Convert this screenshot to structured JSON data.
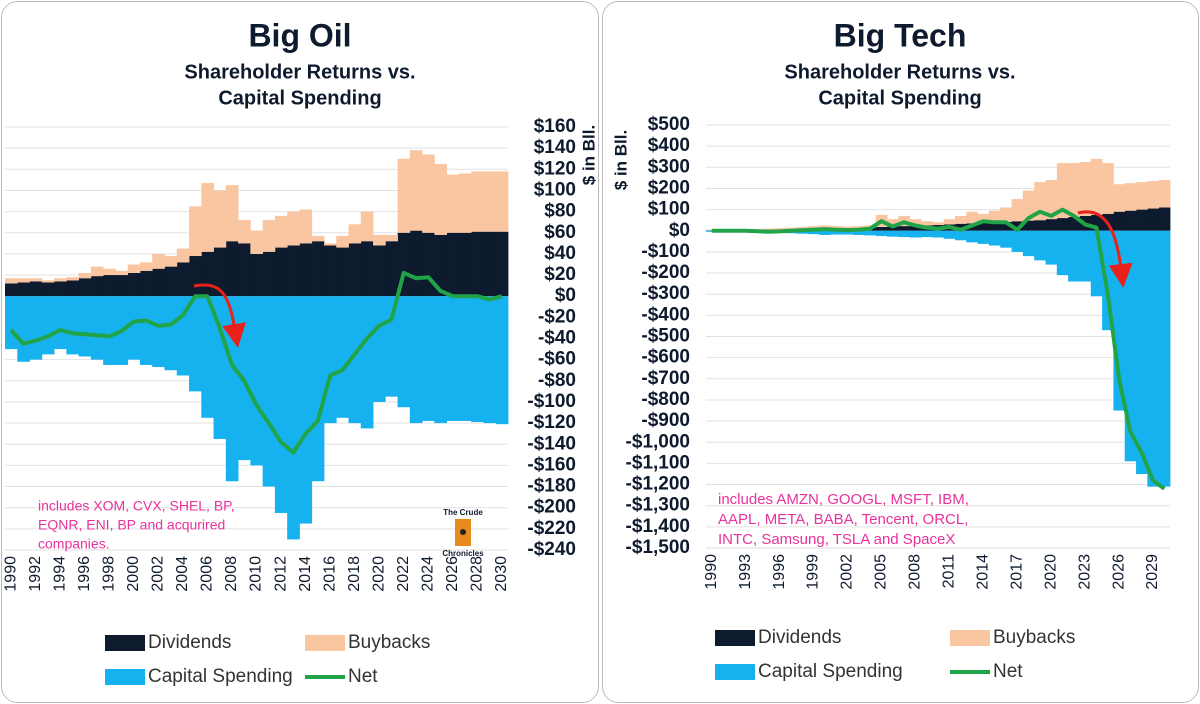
{
  "chart_data": [
    {
      "type": "bar",
      "title": "Big Oil",
      "subtitle": [
        "Shareholder Returns vs.",
        "Capital Spending"
      ],
      "y_label": "$ in Bll.",
      "annotation": [
        "includes XOM, CVX, SHEL, BP,",
        "EQNR, ENI, BP and acqurired",
        "companies."
      ],
      "logo": [
        "The Crude",
        "Chronicles"
      ],
      "axis_side": "right",
      "grid": true,
      "legend": "bottom",
      "categories": [
        "1990",
        null,
        "1992",
        null,
        "1994",
        null,
        "1996",
        null,
        "1998",
        null,
        "2000",
        null,
        "2002",
        null,
        "2004",
        null,
        "2006",
        null,
        "2008",
        null,
        "2010",
        null,
        "2012",
        null,
        "2014",
        null,
        "2016",
        null,
        "2018",
        null,
        "2020",
        null,
        "2022",
        null,
        "2024",
        null,
        "2026",
        null,
        "2028",
        null,
        "2030"
      ],
      "ylim": [
        -240,
        160
      ],
      "yticks": [
        {
          "value": 160,
          "label": "$160"
        },
        {
          "value": 140,
          "label": "$140"
        },
        {
          "value": 120,
          "label": "$120"
        },
        {
          "value": 100,
          "label": "$100"
        },
        {
          "value": 80,
          "label": "$80"
        },
        {
          "value": 60,
          "label": "$60"
        },
        {
          "value": 40,
          "label": "$40"
        },
        {
          "value": 20,
          "label": "$20"
        },
        {
          "value": 0,
          "label": "$0"
        },
        {
          "value": -20,
          "label": "-$20"
        },
        {
          "value": -40,
          "label": "-$40"
        },
        {
          "value": -60,
          "label": "-$60"
        },
        {
          "value": -80,
          "label": "-$80"
        },
        {
          "value": -100,
          "label": "-$100"
        },
        {
          "value": -120,
          "label": "-$120"
        },
        {
          "value": -140,
          "label": "-$140"
        },
        {
          "value": -160,
          "label": "-$160"
        },
        {
          "value": -180,
          "label": "-$180"
        },
        {
          "value": -200,
          "label": "-$200"
        },
        {
          "value": -220,
          "label": "-$220"
        },
        {
          "value": -240,
          "label": "-$240"
        }
      ],
      "series": [
        {
          "name": "Dividends",
          "type": "bar",
          "color": "#0e1a2d",
          "values": [
            12,
            13,
            14,
            13,
            14,
            15,
            17,
            19,
            20,
            20,
            22,
            24,
            26,
            28,
            32,
            38,
            42,
            46,
            52,
            50,
            40,
            42,
            46,
            48,
            50,
            52,
            48,
            46,
            50,
            52,
            48,
            52,
            60,
            62,
            60,
            58,
            60,
            60,
            61,
            61,
            61
          ]
        },
        {
          "name": "Buybacks",
          "type": "bar",
          "color": "#f9c6a1",
          "values": [
            5,
            4,
            3,
            2,
            3,
            3,
            5,
            9,
            6,
            4,
            8,
            8,
            14,
            10,
            13,
            47,
            65,
            54,
            53,
            22,
            22,
            30,
            30,
            32,
            32,
            5,
            2,
            11,
            18,
            28,
            10,
            6,
            70,
            76,
            74,
            67,
            55,
            56,
            57,
            57,
            57
          ]
        },
        {
          "name": "Capital Spending",
          "type": "bar",
          "color": "#16b2ef",
          "values": [
            -50,
            -62,
            -60,
            -55,
            -50,
            -55,
            -57,
            -60,
            -65,
            -65,
            -60,
            -65,
            -67,
            -70,
            -75,
            -90,
            -115,
            -135,
            -175,
            -155,
            -160,
            -180,
            -205,
            -230,
            -215,
            -175,
            -120,
            -115,
            -120,
            -125,
            -100,
            -95,
            -105,
            -120,
            -118,
            -120,
            -118,
            -118,
            -119,
            -120,
            -121
          ]
        },
        {
          "name": "Net",
          "type": "line",
          "color": "#21a448",
          "values": [
            -32,
            -45,
            -42,
            -38,
            -32,
            -35,
            -36,
            -37,
            -38,
            -33,
            -24,
            -23,
            -28,
            -27,
            -18,
            0,
            0,
            -30,
            -65,
            -80,
            -103,
            -120,
            -138,
            -148,
            -130,
            -118,
            -75,
            -70,
            -55,
            -40,
            -28,
            -22,
            22,
            17,
            18,
            5,
            0,
            0,
            0,
            -3,
            0
          ]
        }
      ]
    },
    {
      "type": "bar",
      "title": "Big Tech",
      "subtitle": [
        "Shareholder Returns vs.",
        "Capital Spending"
      ],
      "y_label": "$ in Bll.",
      "annotation": [
        "includes AMZN, GOOGL, MSFT, IBM,",
        "AAPL, META, BABA, Tencent, ORCL,",
        "INTC, Samsung, TSLA and SpaceX"
      ],
      "axis_side": "left",
      "grid": true,
      "legend": "bottom",
      "categories": [
        "1990",
        null,
        null,
        "1993",
        null,
        null,
        "1996",
        null,
        null,
        "1999",
        null,
        null,
        "2002",
        null,
        null,
        "2005",
        null,
        null,
        "2008",
        null,
        null,
        "2011",
        null,
        null,
        "2014",
        null,
        null,
        "2017",
        null,
        null,
        "2020",
        null,
        null,
        "2023",
        null,
        null,
        "2026",
        null,
        null,
        "2029",
        null
      ],
      "ylim": [
        -1500,
        500
      ],
      "yticks": [
        {
          "value": 500,
          "label": "$500"
        },
        {
          "value": 400,
          "label": "$400"
        },
        {
          "value": 300,
          "label": "$300"
        },
        {
          "value": 200,
          "label": "$200"
        },
        {
          "value": 100,
          "label": "$100"
        },
        {
          "value": 0,
          "label": "$0"
        },
        {
          "value": -100,
          "label": "-$100"
        },
        {
          "value": -200,
          "label": "-$200"
        },
        {
          "value": -300,
          "label": "-$300"
        },
        {
          "value": -400,
          "label": "-$400"
        },
        {
          "value": -500,
          "label": "-$500"
        },
        {
          "value": -600,
          "label": "-$600"
        },
        {
          "value": -700,
          "label": "-$700"
        },
        {
          "value": -800,
          "label": "-$800"
        },
        {
          "value": -900,
          "label": "-$900"
        },
        {
          "value": -1000,
          "label": "-$1,000"
        },
        {
          "value": -1100,
          "label": "-$1,100"
        },
        {
          "value": -1200,
          "label": "-$1,200"
        },
        {
          "value": -1300,
          "label": "-$1,300"
        },
        {
          "value": -1400,
          "label": "-$1,400"
        },
        {
          "value": -1500,
          "label": "-$1,500"
        }
      ],
      "series": [
        {
          "name": "Dividends",
          "type": "bar",
          "color": "#0e1a2d",
          "values": [
            2,
            2,
            3,
            3,
            4,
            5,
            5,
            6,
            7,
            8,
            10,
            11,
            12,
            13,
            15,
            18,
            20,
            22,
            24,
            25,
            27,
            30,
            33,
            35,
            38,
            40,
            42,
            45,
            48,
            50,
            55,
            60,
            65,
            70,
            75,
            80,
            90,
            95,
            100,
            105,
            110
          ]
        },
        {
          "name": "Buybacks",
          "type": "bar",
          "color": "#f9c6a1",
          "values": [
            3,
            3,
            3,
            3,
            4,
            5,
            7,
            8,
            11,
            14,
            15,
            11,
            8,
            9,
            10,
            57,
            35,
            48,
            31,
            20,
            13,
            25,
            37,
            55,
            42,
            55,
            68,
            105,
            142,
            180,
            185,
            260,
            255,
            255,
            265,
            240,
            130,
            130,
            130,
            130,
            130
          ]
        },
        {
          "name": "Capital Spending",
          "type": "bar",
          "color": "#16b2ef",
          "values": [
            -5,
            -5,
            -6,
            -7,
            -8,
            -9,
            -10,
            -12,
            -14,
            -16,
            -20,
            -18,
            -18,
            -20,
            -22,
            -25,
            -28,
            -30,
            -32,
            -30,
            -32,
            -38,
            -45,
            -55,
            -62,
            -70,
            -80,
            -100,
            -120,
            -140,
            -160,
            -210,
            -240,
            -240,
            -310,
            -470,
            -850,
            -1090,
            -1150,
            -1210,
            -1210
          ]
        },
        {
          "name": "Net",
          "type": "line",
          "color": "#21a448",
          "values": [
            0,
            0,
            0,
            0,
            -2,
            -5,
            -3,
            0,
            2,
            5,
            8,
            5,
            3,
            5,
            10,
            45,
            20,
            40,
            25,
            15,
            10,
            18,
            5,
            25,
            45,
            40,
            40,
            5,
            60,
            90,
            70,
            100,
            70,
            30,
            15,
            -300,
            -700,
            -950,
            -1050,
            -1180,
            -1220
          ]
        }
      ]
    }
  ]
}
